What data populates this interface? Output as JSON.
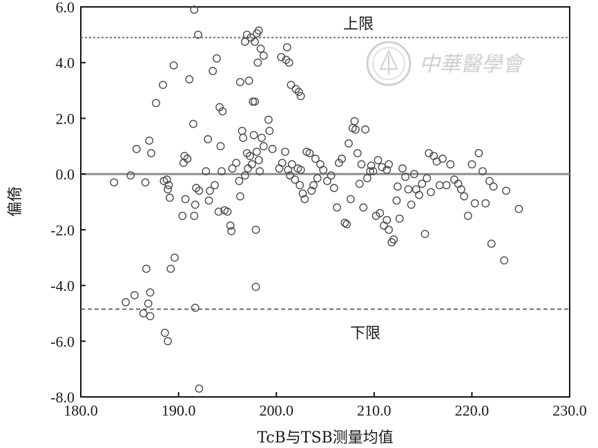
{
  "chart_data": {
    "type": "scatter",
    "xlabel": "TcB与TSB测量均值",
    "ylabel": "偏倚",
    "xlim": [
      180,
      230
    ],
    "ylim": [
      -8,
      6
    ],
    "x_ticks": [
      180,
      190,
      200,
      210,
      220,
      230
    ],
    "x_tick_labels": [
      "180.0",
      "190.0",
      "200.0",
      "210.0",
      "220.0",
      "230.0"
    ],
    "y_ticks": [
      -8,
      -6,
      -4,
      -2,
      0,
      2,
      4,
      6
    ],
    "y_tick_labels": [
      "-8.0",
      "-6.0",
      "-4.0",
      "-2.0",
      "0.0",
      "2.0",
      "4.0",
      "6.0"
    ],
    "grid": false,
    "mean_line": {
      "y": 0
    },
    "upper_limit": {
      "y": 4.9,
      "label": "上限"
    },
    "lower_limit": {
      "y": -4.85,
      "label": "下限"
    },
    "watermark": {
      "text": "中華醫學會",
      "kind": "logo"
    },
    "points": [
      [
        183.4,
        -0.3
      ],
      [
        185.1,
        -0.05
      ],
      [
        185.7,
        0.9
      ],
      [
        186.6,
        -0.3
      ],
      [
        187.0,
        1.2
      ],
      [
        187.2,
        0.75
      ],
      [
        187.7,
        2.55
      ],
      [
        188.4,
        3.2
      ],
      [
        188.8,
        -0.2
      ],
      [
        188.9,
        -0.55
      ],
      [
        189.1,
        -0.85
      ],
      [
        189.5,
        3.9
      ],
      [
        190.4,
        -1.5
      ],
      [
        190.5,
        0.4
      ],
      [
        190.6,
        0.65
      ],
      [
        190.7,
        -0.9
      ],
      [
        191.1,
        3.4
      ],
      [
        191.5,
        1.8
      ],
      [
        191.6,
        -1.5
      ],
      [
        191.7,
        -1.1
      ],
      [
        191.8,
        -0.5
      ],
      [
        192.1,
        -0.6
      ],
      [
        192.8,
        0.1
      ],
      [
        193.0,
        1.25
      ],
      [
        193.1,
        -0.95
      ],
      [
        193.2,
        -0.6
      ],
      [
        193.5,
        3.7
      ],
      [
        193.7,
        -0.4
      ],
      [
        193.9,
        4.15
      ],
      [
        194.1,
        -1.35
      ],
      [
        194.2,
        2.4
      ],
      [
        194.3,
        1.0
      ],
      [
        194.4,
        0.1
      ],
      [
        194.5,
        2.25
      ],
      [
        194.7,
        -1.3
      ],
      [
        195.0,
        -1.35
      ],
      [
        195.3,
        -1.85
      ],
      [
        195.4,
        -2.05
      ],
      [
        195.5,
        0.2
      ],
      [
        195.9,
        0.4
      ],
      [
        196.2,
        -0.25
      ],
      [
        196.3,
        -0.8
      ],
      [
        196.5,
        1.55
      ],
      [
        196.6,
        1.3
      ],
      [
        196.8,
        -0.05
      ],
      [
        197.0,
        0.75
      ],
      [
        197.1,
        0.2
      ],
      [
        197.3,
        0.65
      ],
      [
        197.5,
        0.35
      ],
      [
        197.6,
        2.6
      ],
      [
        197.7,
        1.4
      ],
      [
        197.8,
        2.6
      ],
      [
        197.9,
        -2.0
      ],
      [
        197.9,
        -4.05
      ],
      [
        198.0,
        0.8
      ],
      [
        198.1,
        4.0
      ],
      [
        198.2,
        0.5
      ],
      [
        198.3,
        0.1
      ],
      [
        198.5,
        1.3
      ],
      [
        198.7,
        1.0
      ],
      [
        199.2,
        1.95
      ],
      [
        199.3,
        1.55
      ],
      [
        199.6,
        0.9
      ],
      [
        200.3,
        0.2
      ],
      [
        200.6,
        0.4
      ],
      [
        200.9,
        0.8
      ],
      [
        201.2,
        0.15
      ],
      [
        201.4,
        -0.05
      ],
      [
        201.6,
        0.35
      ],
      [
        201.9,
        -0.2
      ],
      [
        202.2,
        0.2
      ],
      [
        202.4,
        -0.4
      ],
      [
        202.5,
        0.15
      ],
      [
        202.7,
        -0.7
      ],
      [
        202.9,
        -0.9
      ],
      [
        203.1,
        0.8
      ],
      [
        203.4,
        0.75
      ],
      [
        203.6,
        -0.6
      ],
      [
        203.8,
        -0.4
      ],
      [
        204.0,
        0.55
      ],
      [
        204.2,
        -0.15
      ],
      [
        204.5,
        0.35
      ],
      [
        204.8,
        0.15
      ],
      [
        205.2,
        -0.25
      ],
      [
        205.6,
        -0.05
      ],
      [
        205.9,
        -0.5
      ],
      [
        206.2,
        -1.2
      ],
      [
        206.4,
        0.4
      ],
      [
        206.7,
        0.55
      ],
      [
        207.0,
        -1.75
      ],
      [
        207.2,
        -1.8
      ],
      [
        207.4,
        1.1
      ],
      [
        207.6,
        -0.9
      ],
      [
        207.8,
        1.65
      ],
      [
        208.0,
        1.9
      ],
      [
        208.1,
        1.6
      ],
      [
        208.3,
        0.75
      ],
      [
        208.5,
        -0.35
      ],
      [
        208.7,
        0.35
      ],
      [
        208.9,
        -1.2
      ],
      [
        209.1,
        1.6
      ],
      [
        209.3,
        -0.15
      ],
      [
        209.6,
        0.1
      ],
      [
        209.9,
        0.1
      ],
      [
        210.2,
        -1.5
      ],
      [
        210.4,
        0.5
      ],
      [
        210.6,
        -1.4
      ],
      [
        210.8,
        0.25
      ],
      [
        211.0,
        -1.85
      ],
      [
        211.3,
        -1.65
      ],
      [
        211.5,
        -2.0
      ],
      [
        211.8,
        -2.45
      ],
      [
        212.0,
        -2.35
      ],
      [
        212.4,
        -0.45
      ],
      [
        212.6,
        -1.6
      ],
      [
        212.9,
        0.2
      ],
      [
        213.2,
        -0.1
      ],
      [
        213.5,
        -0.55
      ],
      [
        213.8,
        -1.1
      ],
      [
        214.1,
        0.0
      ],
      [
        214.3,
        -0.55
      ],
      [
        214.6,
        -0.75
      ],
      [
        214.9,
        -0.35
      ],
      [
        215.2,
        -2.15
      ],
      [
        215.4,
        -0.15
      ],
      [
        215.8,
        -0.65
      ],
      [
        216.1,
        0.65
      ],
      [
        216.4,
        0.45
      ],
      [
        216.7,
        -0.4
      ],
      [
        217.0,
        0.55
      ],
      [
        217.4,
        -0.4
      ],
      [
        217.8,
        0.35
      ],
      [
        218.2,
        -0.2
      ],
      [
        218.6,
        -0.35
      ],
      [
        218.9,
        -0.55
      ],
      [
        219.2,
        -0.8
      ],
      [
        219.6,
        -1.5
      ],
      [
        220.0,
        0.35
      ],
      [
        220.3,
        -1.05
      ],
      [
        220.7,
        0.75
      ],
      [
        221.1,
        0.1
      ],
      [
        221.4,
        -1.05
      ],
      [
        221.8,
        -0.25
      ],
      [
        222.0,
        -2.5
      ],
      [
        222.2,
        -0.45
      ],
      [
        223.3,
        -3.1
      ],
      [
        223.5,
        -0.6
      ],
      [
        224.8,
        -1.25
      ],
      [
        184.6,
        -4.6
      ],
      [
        185.5,
        -4.35
      ],
      [
        186.4,
        -5.0
      ],
      [
        186.9,
        -4.65
      ],
      [
        187.1,
        -5.1
      ],
      [
        187.1,
        -4.25
      ],
      [
        186.7,
        -3.4
      ],
      [
        188.6,
        -5.7
      ],
      [
        188.9,
        -6.0
      ],
      [
        189.2,
        -3.4
      ],
      [
        189.6,
        -3.0
      ],
      [
        191.7,
        -4.8
      ],
      [
        192.1,
        -7.7
      ],
      [
        191.6,
        5.9
      ],
      [
        192.0,
        5.0
      ],
      [
        196.8,
        4.75
      ],
      [
        197.0,
        5.0
      ],
      [
        197.4,
        4.9
      ],
      [
        197.8,
        4.75
      ],
      [
        198.0,
        5.05
      ],
      [
        198.2,
        5.15
      ],
      [
        198.4,
        4.5
      ],
      [
        198.7,
        4.25
      ],
      [
        200.5,
        4.2
      ],
      [
        201.0,
        4.1
      ],
      [
        201.3,
        4.0
      ],
      [
        201.1,
        4.55
      ],
      [
        201.5,
        3.2
      ],
      [
        202.0,
        3.05
      ],
      [
        202.3,
        2.95
      ],
      [
        202.5,
        2.8
      ],
      [
        211.3,
        0.15
      ],
      [
        211.5,
        0.35
      ],
      [
        212.3,
        -0.95
      ],
      [
        215.6,
        0.75
      ],
      [
        196.3,
        3.3
      ],
      [
        197.2,
        3.35
      ],
      [
        190.9,
        0.55
      ],
      [
        188.5,
        -0.25
      ],
      [
        189.0,
        -0.4
      ],
      [
        209.7,
        0.3
      ]
    ]
  }
}
